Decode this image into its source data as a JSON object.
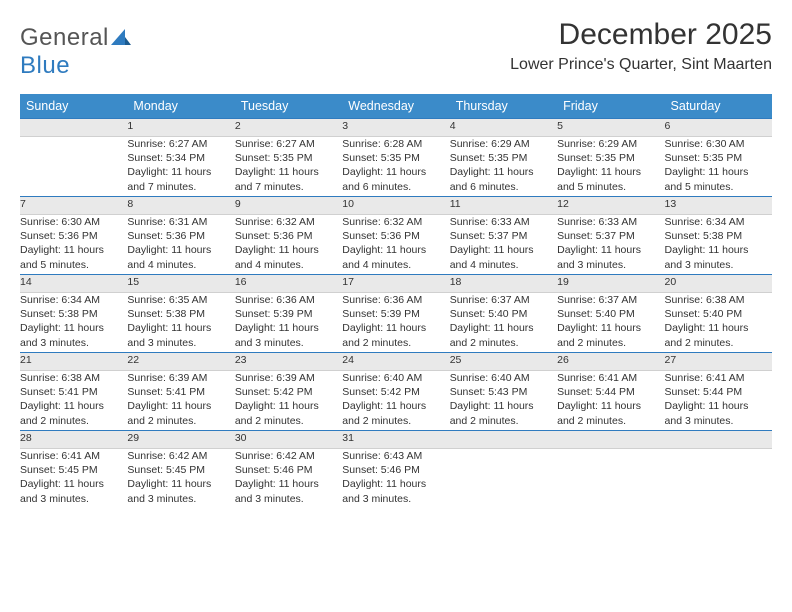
{
  "logo": {
    "word1": "General",
    "word2": "Blue"
  },
  "title": "December 2025",
  "location": "Lower Prince's Quarter, Sint Maarten",
  "colors": {
    "header_bg": "#3b8bc9",
    "header_text": "#ffffff",
    "daynum_bg": "#e9e9e9",
    "daynum_border_top": "#2f7bbf",
    "body_text": "#333333",
    "logo_gray": "#555555",
    "logo_blue": "#2f7bbf"
  },
  "day_headers": [
    "Sunday",
    "Monday",
    "Tuesday",
    "Wednesday",
    "Thursday",
    "Friday",
    "Saturday"
  ],
  "weeks": [
    {
      "nums": [
        "",
        "1",
        "2",
        "3",
        "4",
        "5",
        "6"
      ],
      "cells": [
        {
          "empty": true
        },
        {
          "sunrise": "Sunrise: 6:27 AM",
          "sunset": "Sunset: 5:34 PM",
          "daylight1": "Daylight: 11 hours",
          "daylight2": "and 7 minutes."
        },
        {
          "sunrise": "Sunrise: 6:27 AM",
          "sunset": "Sunset: 5:35 PM",
          "daylight1": "Daylight: 11 hours",
          "daylight2": "and 7 minutes."
        },
        {
          "sunrise": "Sunrise: 6:28 AM",
          "sunset": "Sunset: 5:35 PM",
          "daylight1": "Daylight: 11 hours",
          "daylight2": "and 6 minutes."
        },
        {
          "sunrise": "Sunrise: 6:29 AM",
          "sunset": "Sunset: 5:35 PM",
          "daylight1": "Daylight: 11 hours",
          "daylight2": "and 6 minutes."
        },
        {
          "sunrise": "Sunrise: 6:29 AM",
          "sunset": "Sunset: 5:35 PM",
          "daylight1": "Daylight: 11 hours",
          "daylight2": "and 5 minutes."
        },
        {
          "sunrise": "Sunrise: 6:30 AM",
          "sunset": "Sunset: 5:35 PM",
          "daylight1": "Daylight: 11 hours",
          "daylight2": "and 5 minutes."
        }
      ]
    },
    {
      "nums": [
        "7",
        "8",
        "9",
        "10",
        "11",
        "12",
        "13"
      ],
      "cells": [
        {
          "sunrise": "Sunrise: 6:30 AM",
          "sunset": "Sunset: 5:36 PM",
          "daylight1": "Daylight: 11 hours",
          "daylight2": "and 5 minutes."
        },
        {
          "sunrise": "Sunrise: 6:31 AM",
          "sunset": "Sunset: 5:36 PM",
          "daylight1": "Daylight: 11 hours",
          "daylight2": "and 4 minutes."
        },
        {
          "sunrise": "Sunrise: 6:32 AM",
          "sunset": "Sunset: 5:36 PM",
          "daylight1": "Daylight: 11 hours",
          "daylight2": "and 4 minutes."
        },
        {
          "sunrise": "Sunrise: 6:32 AM",
          "sunset": "Sunset: 5:36 PM",
          "daylight1": "Daylight: 11 hours",
          "daylight2": "and 4 minutes."
        },
        {
          "sunrise": "Sunrise: 6:33 AM",
          "sunset": "Sunset: 5:37 PM",
          "daylight1": "Daylight: 11 hours",
          "daylight2": "and 4 minutes."
        },
        {
          "sunrise": "Sunrise: 6:33 AM",
          "sunset": "Sunset: 5:37 PM",
          "daylight1": "Daylight: 11 hours",
          "daylight2": "and 3 minutes."
        },
        {
          "sunrise": "Sunrise: 6:34 AM",
          "sunset": "Sunset: 5:38 PM",
          "daylight1": "Daylight: 11 hours",
          "daylight2": "and 3 minutes."
        }
      ]
    },
    {
      "nums": [
        "14",
        "15",
        "16",
        "17",
        "18",
        "19",
        "20"
      ],
      "cells": [
        {
          "sunrise": "Sunrise: 6:34 AM",
          "sunset": "Sunset: 5:38 PM",
          "daylight1": "Daylight: 11 hours",
          "daylight2": "and 3 minutes."
        },
        {
          "sunrise": "Sunrise: 6:35 AM",
          "sunset": "Sunset: 5:38 PM",
          "daylight1": "Daylight: 11 hours",
          "daylight2": "and 3 minutes."
        },
        {
          "sunrise": "Sunrise: 6:36 AM",
          "sunset": "Sunset: 5:39 PM",
          "daylight1": "Daylight: 11 hours",
          "daylight2": "and 3 minutes."
        },
        {
          "sunrise": "Sunrise: 6:36 AM",
          "sunset": "Sunset: 5:39 PM",
          "daylight1": "Daylight: 11 hours",
          "daylight2": "and 2 minutes."
        },
        {
          "sunrise": "Sunrise: 6:37 AM",
          "sunset": "Sunset: 5:40 PM",
          "daylight1": "Daylight: 11 hours",
          "daylight2": "and 2 minutes."
        },
        {
          "sunrise": "Sunrise: 6:37 AM",
          "sunset": "Sunset: 5:40 PM",
          "daylight1": "Daylight: 11 hours",
          "daylight2": "and 2 minutes."
        },
        {
          "sunrise": "Sunrise: 6:38 AM",
          "sunset": "Sunset: 5:40 PM",
          "daylight1": "Daylight: 11 hours",
          "daylight2": "and 2 minutes."
        }
      ]
    },
    {
      "nums": [
        "21",
        "22",
        "23",
        "24",
        "25",
        "26",
        "27"
      ],
      "cells": [
        {
          "sunrise": "Sunrise: 6:38 AM",
          "sunset": "Sunset: 5:41 PM",
          "daylight1": "Daylight: 11 hours",
          "daylight2": "and 2 minutes."
        },
        {
          "sunrise": "Sunrise: 6:39 AM",
          "sunset": "Sunset: 5:41 PM",
          "daylight1": "Daylight: 11 hours",
          "daylight2": "and 2 minutes."
        },
        {
          "sunrise": "Sunrise: 6:39 AM",
          "sunset": "Sunset: 5:42 PM",
          "daylight1": "Daylight: 11 hours",
          "daylight2": "and 2 minutes."
        },
        {
          "sunrise": "Sunrise: 6:40 AM",
          "sunset": "Sunset: 5:42 PM",
          "daylight1": "Daylight: 11 hours",
          "daylight2": "and 2 minutes."
        },
        {
          "sunrise": "Sunrise: 6:40 AM",
          "sunset": "Sunset: 5:43 PM",
          "daylight1": "Daylight: 11 hours",
          "daylight2": "and 2 minutes."
        },
        {
          "sunrise": "Sunrise: 6:41 AM",
          "sunset": "Sunset: 5:44 PM",
          "daylight1": "Daylight: 11 hours",
          "daylight2": "and 2 minutes."
        },
        {
          "sunrise": "Sunrise: 6:41 AM",
          "sunset": "Sunset: 5:44 PM",
          "daylight1": "Daylight: 11 hours",
          "daylight2": "and 3 minutes."
        }
      ]
    },
    {
      "nums": [
        "28",
        "29",
        "30",
        "31",
        "",
        "",
        ""
      ],
      "cells": [
        {
          "sunrise": "Sunrise: 6:41 AM",
          "sunset": "Sunset: 5:45 PM",
          "daylight1": "Daylight: 11 hours",
          "daylight2": "and 3 minutes."
        },
        {
          "sunrise": "Sunrise: 6:42 AM",
          "sunset": "Sunset: 5:45 PM",
          "daylight1": "Daylight: 11 hours",
          "daylight2": "and 3 minutes."
        },
        {
          "sunrise": "Sunrise: 6:42 AM",
          "sunset": "Sunset: 5:46 PM",
          "daylight1": "Daylight: 11 hours",
          "daylight2": "and 3 minutes."
        },
        {
          "sunrise": "Sunrise: 6:43 AM",
          "sunset": "Sunset: 5:46 PM",
          "daylight1": "Daylight: 11 hours",
          "daylight2": "and 3 minutes."
        },
        {
          "empty": true
        },
        {
          "empty": true
        },
        {
          "empty": true
        }
      ]
    }
  ]
}
